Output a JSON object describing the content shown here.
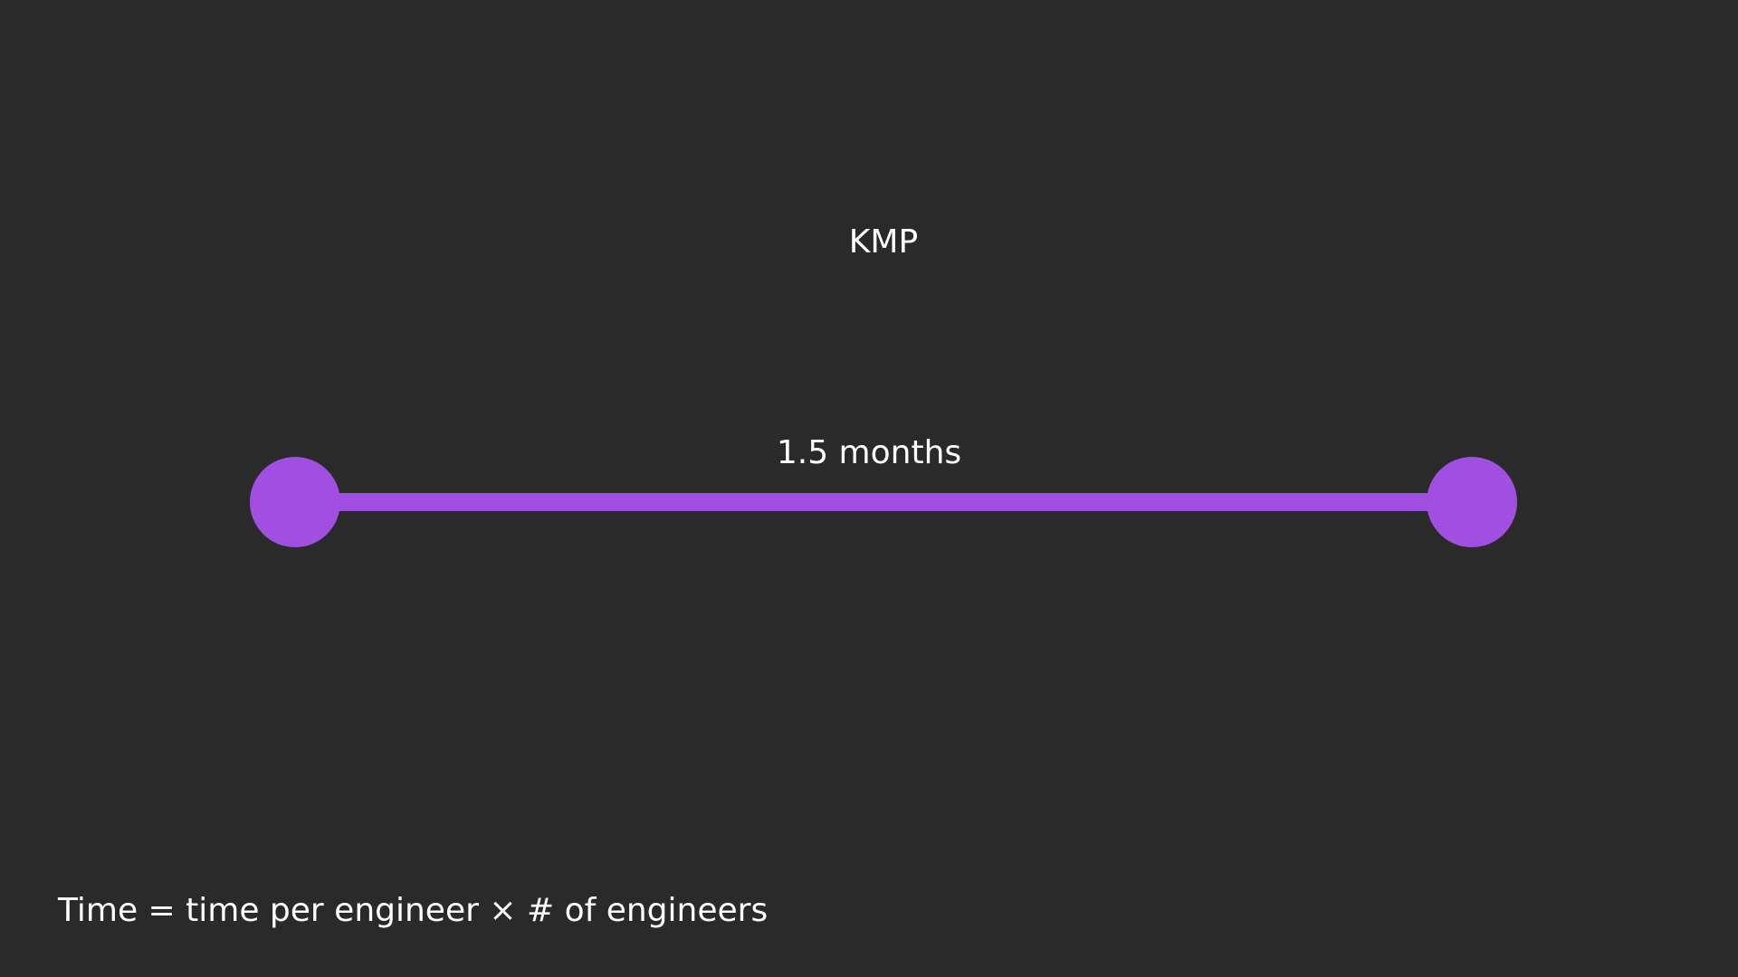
{
  "title": "KMP",
  "timeline": {
    "label": "1.5 months"
  },
  "footer": "Time = time per engineer × # of engineers"
}
